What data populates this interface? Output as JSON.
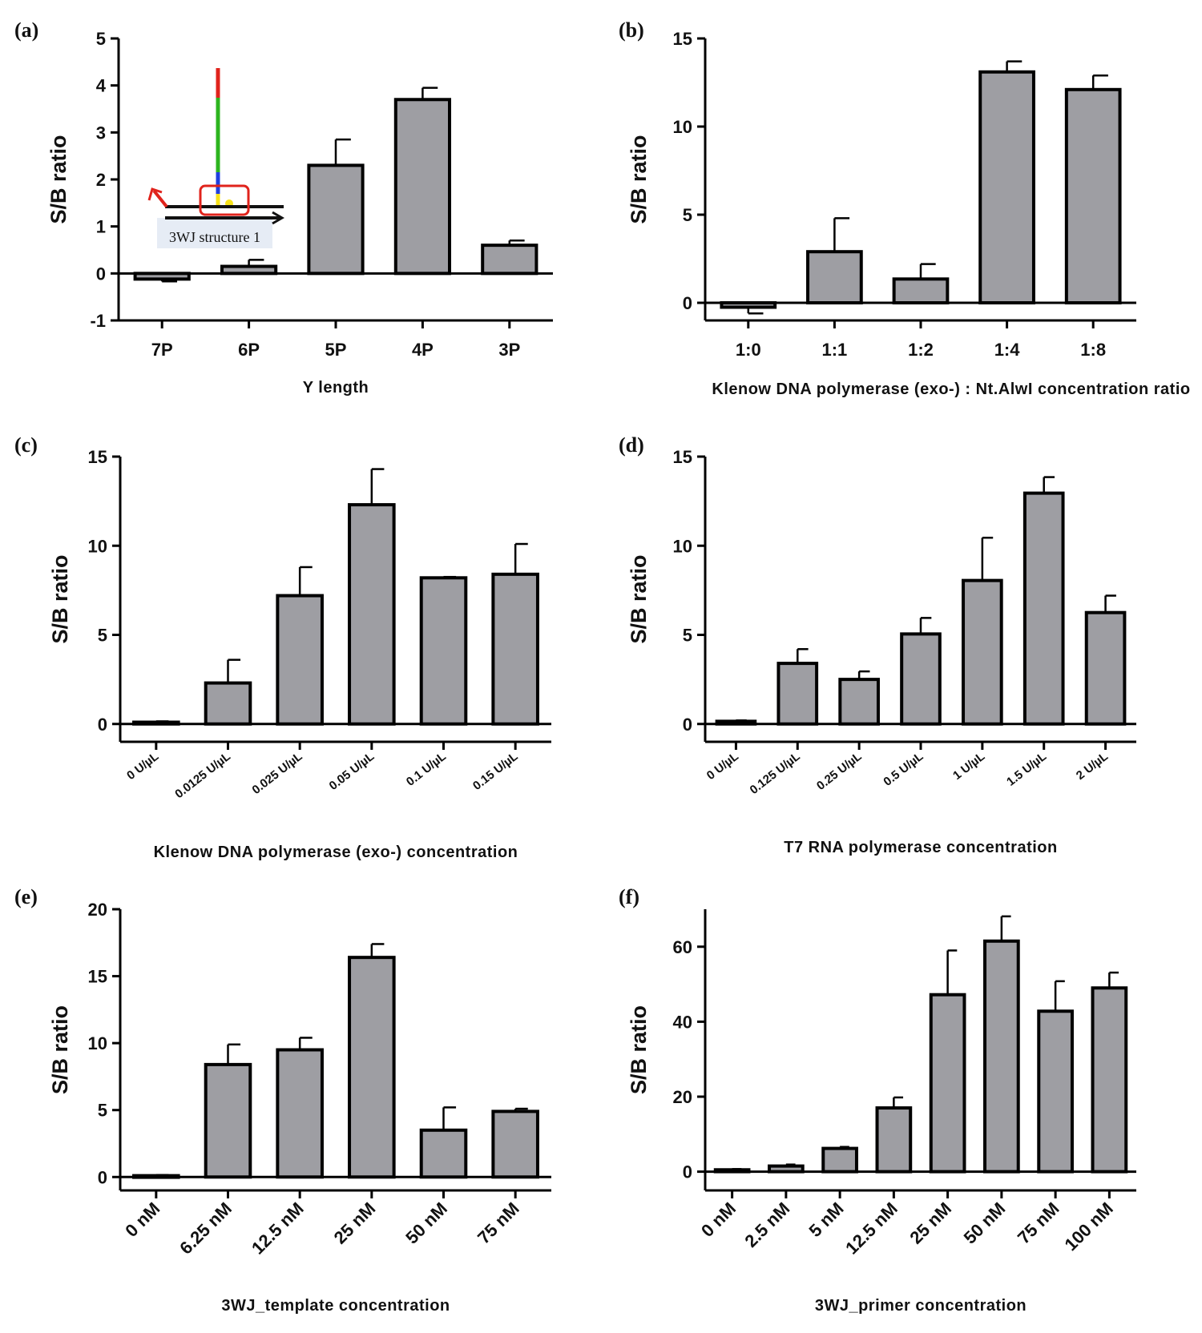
{
  "colors": {
    "bar_fill": "#9e9ea3",
    "stroke": "#000000"
  },
  "chart_data": [
    {
      "type": "bar",
      "panel": "(a)",
      "categories": [
        "7P",
        "6P",
        "5P",
        "4P",
        "3P"
      ],
      "values": [
        -0.12,
        0.15,
        2.3,
        3.7,
        0.6
      ],
      "errors": [
        0.05,
        0.14,
        0.55,
        0.25,
        0.1
      ],
      "xlabel": "Y length",
      "ylabel": "S/B ratio",
      "ylim": [
        -1,
        5
      ],
      "yticks": [
        -1,
        0,
        1,
        2,
        3,
        4,
        5
      ],
      "inset_label": "3WJ structure 1"
    },
    {
      "type": "bar",
      "panel": "(b)",
      "categories": [
        "1:0",
        "1:1",
        "1:2",
        "1:4",
        "1:8"
      ],
      "values": [
        -0.25,
        2.9,
        1.35,
        13.1,
        12.1
      ],
      "errors": [
        0.35,
        1.9,
        0.85,
        0.6,
        0.8
      ],
      "xlabel": "Klenow DNA polymerase (exo-) : Nt.AlwI concentration ratio",
      "ylabel": "S/B ratio",
      "ylim": [
        -1,
        15
      ],
      "yticks": [
        0,
        5,
        10,
        15
      ]
    },
    {
      "type": "bar",
      "panel": "(c)",
      "categories": [
        "0 U/µL",
        "0.0125 U/µL",
        "0.025 U/µL",
        "0.05 U/µL",
        "0.1 U/µL",
        "0.15 U/µL"
      ],
      "values": [
        0.1,
        2.3,
        7.2,
        12.3,
        8.2,
        8.4
      ],
      "errors": [
        0.05,
        1.3,
        1.6,
        2.0,
        0.05,
        1.7
      ],
      "xlabel": "Klenow DNA polymerase (exo-) concentration",
      "ylabel": "S/B ratio",
      "ylim": [
        -1,
        15
      ],
      "yticks": [
        0,
        5,
        10,
        15
      ]
    },
    {
      "type": "bar",
      "panel": "(d)",
      "categories": [
        "0 U/µL",
        "0.125 U/µL",
        "0.25 U/µL",
        "0.5 U/µL",
        "1 U/µL",
        "1.5 U/µL",
        "2 U/µL"
      ],
      "values": [
        0.15,
        3.4,
        2.5,
        5.05,
        8.05,
        12.95,
        6.25
      ],
      "errors": [
        0.05,
        0.8,
        0.45,
        0.9,
        2.4,
        0.9,
        0.95
      ],
      "xlabel": "T7 RNA polymerase concentration",
      "ylabel": "S/B ratio",
      "ylim": [
        -1,
        15
      ],
      "yticks": [
        0,
        5,
        10,
        15
      ]
    },
    {
      "type": "bar",
      "panel": "(e)",
      "categories": [
        "0 nM",
        "6.25 nM",
        "12.5 nM",
        "25 nM",
        "50 nM",
        "75 nM"
      ],
      "values": [
        0.1,
        8.4,
        9.5,
        16.4,
        3.5,
        4.9
      ],
      "errors": [
        0.05,
        1.5,
        0.9,
        1.0,
        1.7,
        0.2
      ],
      "xlabel": "3WJ_template concentration",
      "ylabel": "S/B ratio",
      "ylim": [
        -1,
        20
      ],
      "yticks": [
        0,
        5,
        10,
        15,
        20
      ]
    },
    {
      "type": "bar",
      "panel": "(f)",
      "categories": [
        "0 nM",
        "2.5 nM",
        "5 nM",
        "12.5 nM",
        "25 nM",
        "50 nM",
        "75 nM",
        "100 nM"
      ],
      "values": [
        0.5,
        1.5,
        6.2,
        17.0,
        47.2,
        61.5,
        42.8,
        49.0
      ],
      "errors": [
        0.2,
        0.4,
        0.4,
        2.8,
        11.8,
        6.6,
        8.0,
        4.1
      ],
      "xlabel": "3WJ_primer concentration",
      "ylabel": "S/B ratio",
      "ylim": [
        -5,
        70
      ],
      "yticks": [
        0,
        20,
        40,
        60
      ]
    }
  ]
}
